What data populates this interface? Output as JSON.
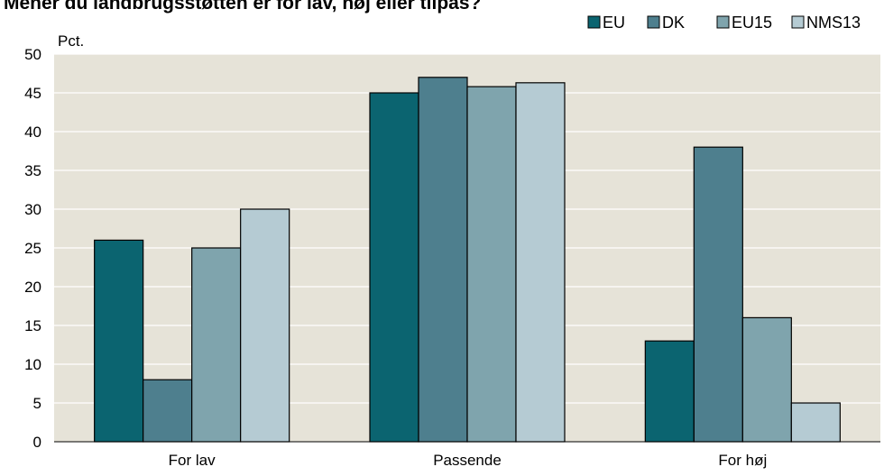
{
  "chart_data": {
    "type": "bar",
    "title": "Mener du landbrugsstøtten er for lav, høj eller tilpas?",
    "ylabel": "Pct.",
    "xlabel": "",
    "categories": [
      "For lav",
      "Passende",
      "For høj"
    ],
    "series": [
      {
        "name": "EU",
        "values": [
          26,
          45,
          13
        ],
        "color": "#0b6470"
      },
      {
        "name": "DK",
        "values": [
          8,
          47,
          38
        ],
        "color": "#4e7f8e"
      },
      {
        "name": "EU15",
        "values": [
          25,
          45.8,
          16
        ],
        "color": "#7fa4ad"
      },
      {
        "name": "NMS13",
        "values": [
          30,
          46.3,
          5
        ],
        "color": "#b5cbd3"
      }
    ],
    "ylim": [
      0,
      50
    ],
    "yticks": [
      0,
      5,
      10,
      15,
      20,
      25,
      30,
      35,
      40,
      45,
      50
    ],
    "grid": true,
    "legend_position": "top-right",
    "plot_background": "#e6e3d8",
    "grid_color": "#ffffff",
    "bar_edge_color": "#000000"
  }
}
